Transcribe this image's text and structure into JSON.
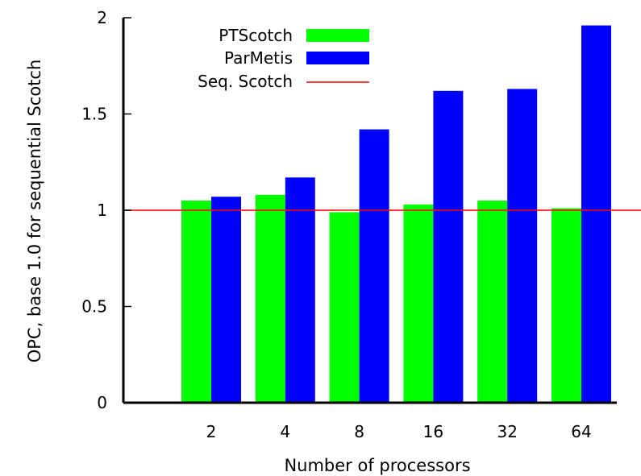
{
  "chart_data": {
    "type": "bar",
    "title": "",
    "xlabel": "Number of processors",
    "ylabel": "OPC, base 1.0 for sequential Scotch",
    "categories": [
      "2",
      "4",
      "8",
      "16",
      "32",
      "64"
    ],
    "series": [
      {
        "name": "PTScotch",
        "color": "#00ff00",
        "values": [
          1.05,
          1.08,
          0.99,
          1.03,
          1.05,
          1.01
        ]
      },
      {
        "name": "ParMetis",
        "color": "#0000ff",
        "values": [
          1.07,
          1.17,
          1.42,
          1.62,
          1.63,
          1.96
        ]
      }
    ],
    "reference_line": {
      "name": "Seq. Scotch",
      "value": 1.0,
      "color": "#ff0000"
    },
    "ylim": [
      0,
      2
    ],
    "yticks": [
      "0",
      "0.5",
      "1",
      "1.5",
      "2"
    ],
    "grid": false,
    "legend_position": "top-left"
  }
}
